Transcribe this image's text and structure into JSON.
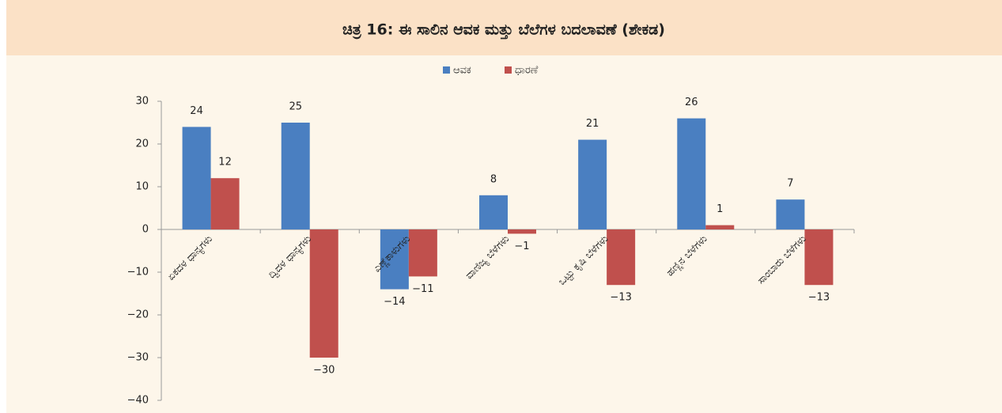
{
  "chart_data": {
    "type": "bar",
    "title": "ಚಿತ್ರ 16: ಈ ಸಾಲಿನ ಆವಕ ಮತ್ತು ಬೆಲೆಗಳ ಬದಲಾವಣೆ (ಶೇಕಡ)",
    "categories": [
      "ಏಕದಳ ಧಾನ್ಯಗಳು",
      "ದ್ವಿದಳ ಧಾನ್ಯಗಳು",
      "ಎಣ್ಣೆಕಾಳುಗಳು",
      "ವಾಣಿಜ್ಯ ಬೆಳೆಗಳು",
      "ಒಟ್ಟು ಕೃಷಿ ಬೆಳೆಗಳು",
      "ಹಣ್ಣಿನ ಬೆಳೆಗಳು",
      "ಸಾಂಬಾರು ಬೆಳೆಗಳು"
    ],
    "series": [
      {
        "name": "ಆವಕ",
        "color": "#4a7fc1",
        "values": [
          24,
          25,
          -14,
          8,
          21,
          26,
          7
        ],
        "value_labels": [
          "24",
          "25",
          "−14",
          "8",
          "21",
          "26",
          "7"
        ]
      },
      {
        "name": "ಧಾರಣೆ",
        "color": "#c0504d",
        "values": [
          12,
          -30,
          -11,
          -1,
          -13,
          1,
          -13
        ],
        "value_labels": [
          "12",
          "−30",
          "−11",
          "−1",
          "−13",
          "1",
          "−13"
        ]
      }
    ],
    "ylim": [
      -40,
      30
    ],
    "yticks": [
      {
        "value": -40,
        "label": "−40"
      },
      {
        "value": -30,
        "label": "−30"
      },
      {
        "value": -20,
        "label": "−20"
      },
      {
        "value": -10,
        "label": "−10"
      },
      0,
      10,
      20,
      30
    ],
    "legend": "top"
  }
}
